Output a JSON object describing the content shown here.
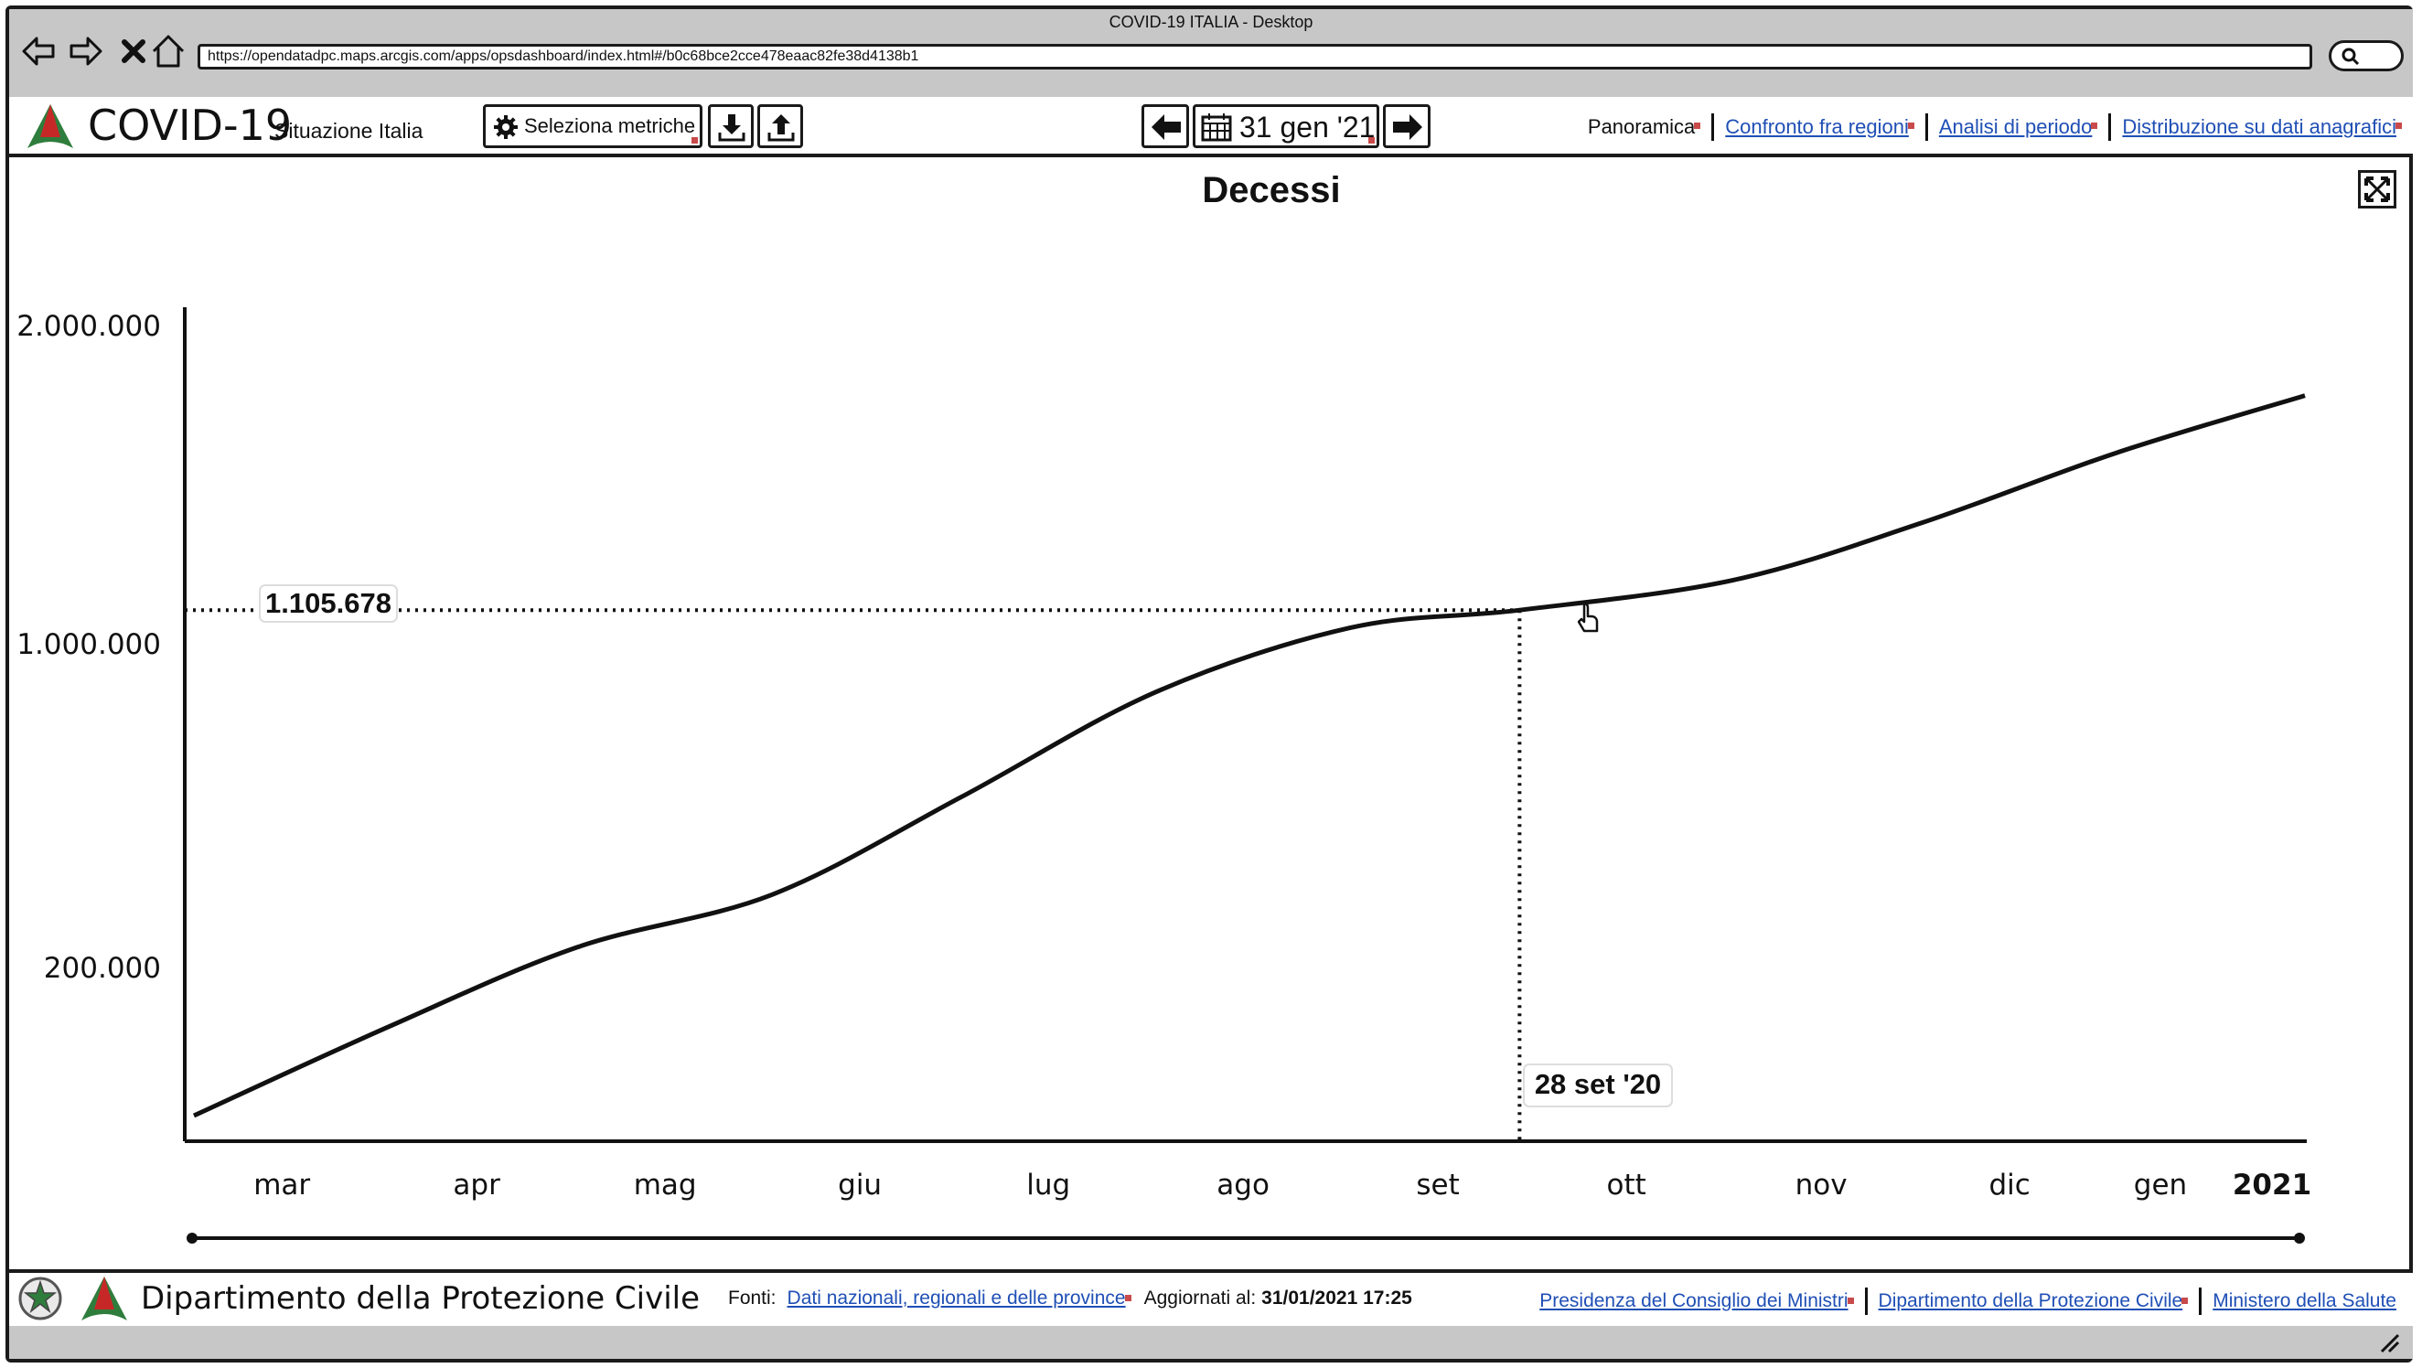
{
  "window": {
    "title": "COVID-19 ITALIA - Desktop",
    "url": "https://opendatadpc.maps.arcgis.com/apps/opsdashboard/index.html#/b0c68bce2cce478eaac82fe38d4138b1"
  },
  "header": {
    "brand_title": "COVID-19",
    "brand_subtitle": "Situazione Italia",
    "metrics_button": "Seleziona metriche",
    "date_label": "31 gen '21",
    "nav": [
      {
        "label": "Panoramica",
        "current": true
      },
      {
        "label": "Confronto fra regioni",
        "current": false
      },
      {
        "label": "Analisi di periodo",
        "current": false
      },
      {
        "label": "Distribuzione su dati anagrafici",
        "current": false
      }
    ]
  },
  "chart": {
    "title": "Decessi",
    "tooltip_value": "1.105.678",
    "tooltip_date": "28 set '20",
    "y_ticks": [
      "2.000.000",
      "1.000.000",
      "200.000"
    ],
    "x_ticks": [
      "mar",
      "apr",
      "mag",
      "giu",
      "lug",
      "ago",
      "set",
      "ott",
      "nov",
      "dic",
      "gen",
      "2021"
    ]
  },
  "chart_data": {
    "type": "line",
    "title": "Decessi",
    "xlabel": "",
    "ylabel": "",
    "x": [
      "2020-03-01",
      "2020-04-01",
      "2020-05-01",
      "2020-06-01",
      "2020-07-01",
      "2020-08-01",
      "2020-09-01",
      "2020-09-28",
      "2020-11-01",
      "2020-12-01",
      "2021-01-01",
      "2021-01-31"
    ],
    "values": [
      0,
      120000,
      250000,
      380000,
      620000,
      880000,
      1050000,
      1105678,
      1200000,
      1380000,
      1600000,
      1780000
    ],
    "ylim": [
      0,
      2000000
    ],
    "y_tick_values": [
      2000000,
      1000000,
      200000
    ],
    "grid": false,
    "highlight": {
      "x": "2020-09-28",
      "y": 1105678
    }
  },
  "footer": {
    "org_name": "Dipartimento della Protezione Civile",
    "sources_label": "Fonti:",
    "sources_link": "Dati nazionali, regionali e delle province",
    "updated_label": "Aggiornati al:",
    "updated_value": "31/01/2021 17:25",
    "links": [
      "Presidenza del Consiglio dei Ministri",
      "Dipartimento della Protezione Civile",
      "Ministero della Salute"
    ]
  },
  "colors": {
    "chrome": "#c7c7c7",
    "link": "#1f4fb5",
    "line": "#111111",
    "marker": "#c94a4a"
  }
}
